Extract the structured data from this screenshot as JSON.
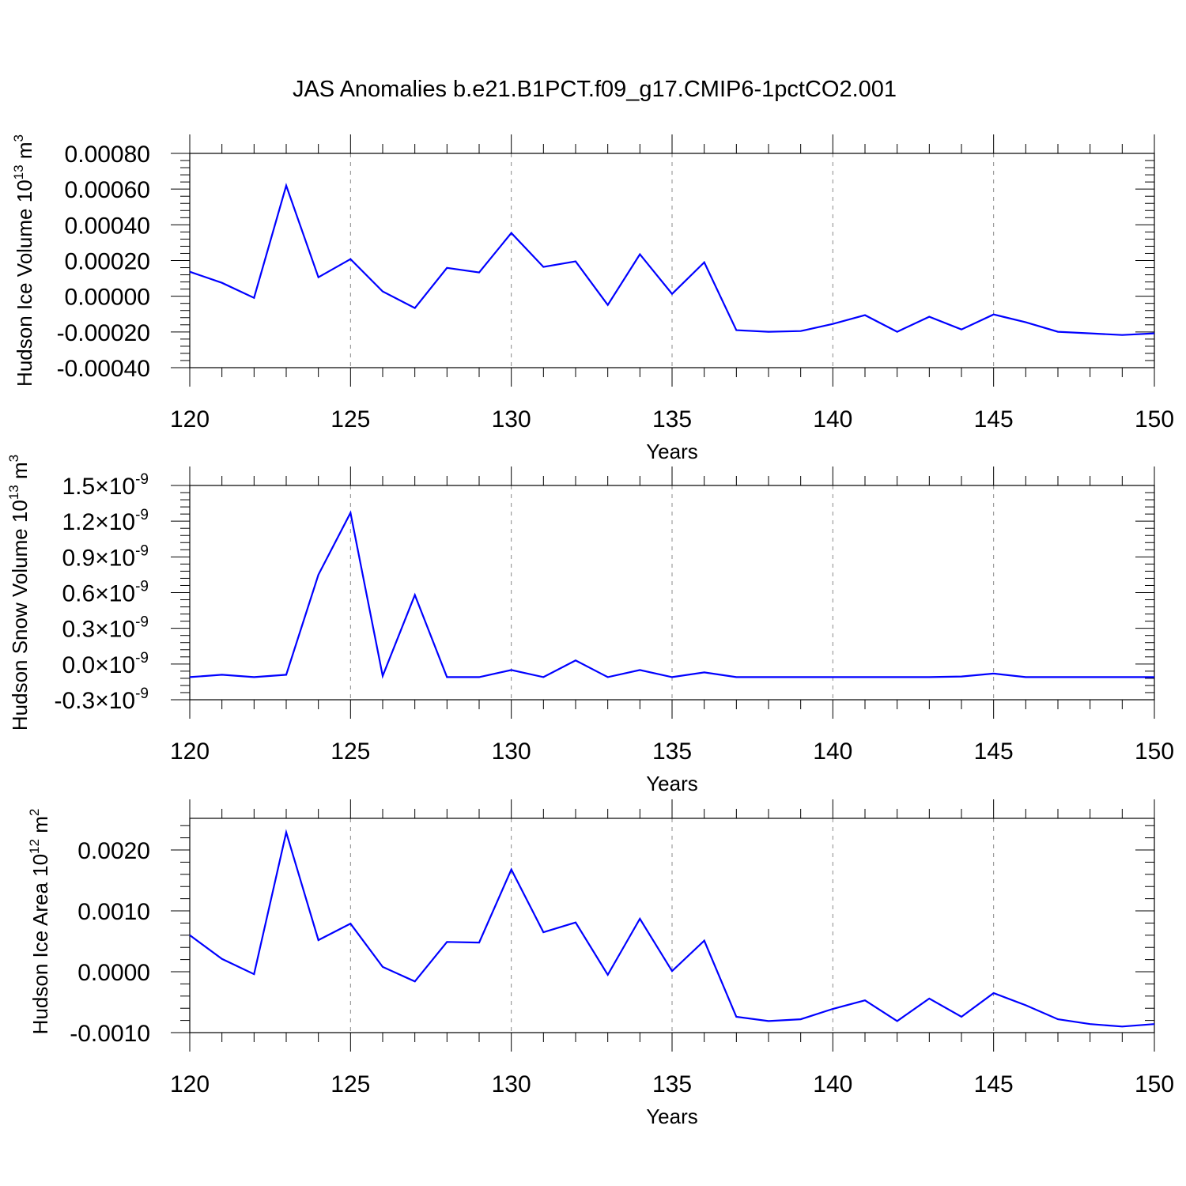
{
  "title": "JAS Anomalies b.e21.B1PCT.f09_g17.CMIP6-1pctCO2.001",
  "line_color": "#0000ff",
  "chart_data": [
    {
      "type": "line",
      "title": "JAS Anomalies b.e21.B1PCT.f09_g17.CMIP6-1pctCO2.001",
      "xlabel": "Years",
      "ylabel": "Hudson Ice Volume 10",
      "ylabel_exp": "13",
      "ylabel_unit": " m",
      "ylabel_unit_exp": "3",
      "xlim": [
        120,
        150
      ],
      "ylim": [
        -0.0004,
        0.0008
      ],
      "xticks": [
        120,
        125,
        130,
        135,
        140,
        145,
        150
      ],
      "xtick_labels": [
        "120",
        "125",
        "130",
        "135",
        "140",
        "145",
        "150"
      ],
      "yticks": [
        -0.0004,
        -0.0002,
        0,
        0.0002,
        0.0004,
        0.0006,
        0.0008
      ],
      "ytick_labels": [
        "-0.00040",
        "-0.00020",
        "0.00000",
        "0.00020",
        "0.00040",
        "0.00060",
        "0.00080"
      ],
      "x": [
        120,
        121,
        122,
        123,
        124,
        125,
        126,
        127,
        128,
        129,
        130,
        131,
        132,
        133,
        134,
        135,
        136,
        137,
        138,
        139,
        140,
        141,
        142,
        143,
        144,
        145,
        146,
        147,
        148,
        149,
        150
      ],
      "y": [
        0.000137,
        7.5e-05,
        -9e-06,
        0.00062,
        0.000106,
        0.000208,
        2.7e-05,
        -6.6e-05,
        0.000159,
        0.000133,
        0.000354,
        0.000164,
        0.000195,
        -4.9e-05,
        0.000235,
        1.3e-05,
        0.00019,
        -0.00019,
        -0.000199,
        -0.000195,
        -0.000155,
        -0.000106,
        -0.000199,
        -0.000115,
        -0.000186,
        -0.000102,
        -0.000146,
        -0.000199,
        -0.000208,
        -0.000217,
        -0.000208
      ],
      "grid": "vertical dashed at major x ticks"
    },
    {
      "type": "line",
      "xlabel": "Years",
      "ylabel": "Hudson Snow Volume 10",
      "ylabel_exp": "13",
      "ylabel_unit": " m",
      "ylabel_unit_exp": "3",
      "xlim": [
        120,
        150
      ],
      "ylim": [
        -3e-10,
        1.5e-09
      ],
      "xticks": [
        120,
        125,
        130,
        135,
        140,
        145,
        150
      ],
      "xtick_labels": [
        "120",
        "125",
        "130",
        "135",
        "140",
        "145",
        "150"
      ],
      "yticks": [
        -3e-10,
        0,
        3e-10,
        6e-10,
        9e-10,
        1.2e-09,
        1.5e-09
      ],
      "ytick_labels": [
        "-0.3×10",
        "0.0×10",
        "0.3×10",
        "0.6×10",
        "0.9×10",
        "1.2×10",
        "1.5×10"
      ],
      "ytick_exp": "-9",
      "x": [
        120,
        121,
        122,
        123,
        124,
        125,
        126,
        127,
        128,
        129,
        130,
        131,
        132,
        133,
        134,
        135,
        136,
        137,
        138,
        139,
        140,
        141,
        142,
        143,
        144,
        145,
        146,
        147,
        148,
        149,
        150
      ],
      "y": [
        -1.1e-10,
        -9e-11,
        -1.1e-10,
        -9e-11,
        7.5e-10,
        1.27e-09,
        -1e-10,
        5.8e-10,
        -1.1e-10,
        -1.1e-10,
        -5e-11,
        -1.1e-10,
        3e-11,
        -1.1e-10,
        -5e-11,
        -1.1e-10,
        -7e-11,
        -1.1e-10,
        -1.1e-10,
        -1.1e-10,
        -1.1e-10,
        -1.1e-10,
        -1.1e-10,
        -1.1e-10,
        -1.05e-10,
        -8e-11,
        -1.1e-10,
        -1.1e-10,
        -1.1e-10,
        -1.1e-10,
        -1.1e-10
      ],
      "grid": "vertical dashed at major x ticks"
    },
    {
      "type": "line",
      "xlabel": "Years",
      "ylabel": "Hudson Ice Area 10",
      "ylabel_exp": "12",
      "ylabel_unit": " m",
      "ylabel_unit_exp": "2",
      "xlim": [
        120,
        150
      ],
      "ylim": [
        -0.001,
        0.00252
      ],
      "xticks": [
        120,
        125,
        130,
        135,
        140,
        145,
        150
      ],
      "xtick_labels": [
        "120",
        "125",
        "130",
        "135",
        "140",
        "145",
        "150"
      ],
      "yticks": [
        -0.001,
        0,
        0.001,
        0.002
      ],
      "ytick_labels": [
        "-0.0010",
        "0.0000",
        "0.0010",
        "0.0020"
      ],
      "x": [
        120,
        121,
        122,
        123,
        124,
        125,
        126,
        127,
        128,
        129,
        130,
        131,
        132,
        133,
        134,
        135,
        136,
        137,
        138,
        139,
        140,
        141,
        142,
        143,
        144,
        145,
        146,
        147,
        148,
        149,
        150
      ],
      "y": [
        0.0006,
        0.00021,
        -4e-05,
        0.00229,
        0.00052,
        0.00079,
        8e-05,
        -0.00016,
        0.00049,
        0.00048,
        0.00168,
        0.00065,
        0.00081,
        -5e-05,
        0.00087,
        1e-05,
        0.00051,
        -0.00074,
        -0.00081,
        -0.00078,
        -0.00061,
        -0.00047,
        -0.00081,
        -0.00044,
        -0.00074,
        -0.00035,
        -0.00055,
        -0.00078,
        -0.00086,
        -0.0009,
        -0.00086
      ],
      "grid": "vertical dashed at major x ticks"
    }
  ]
}
